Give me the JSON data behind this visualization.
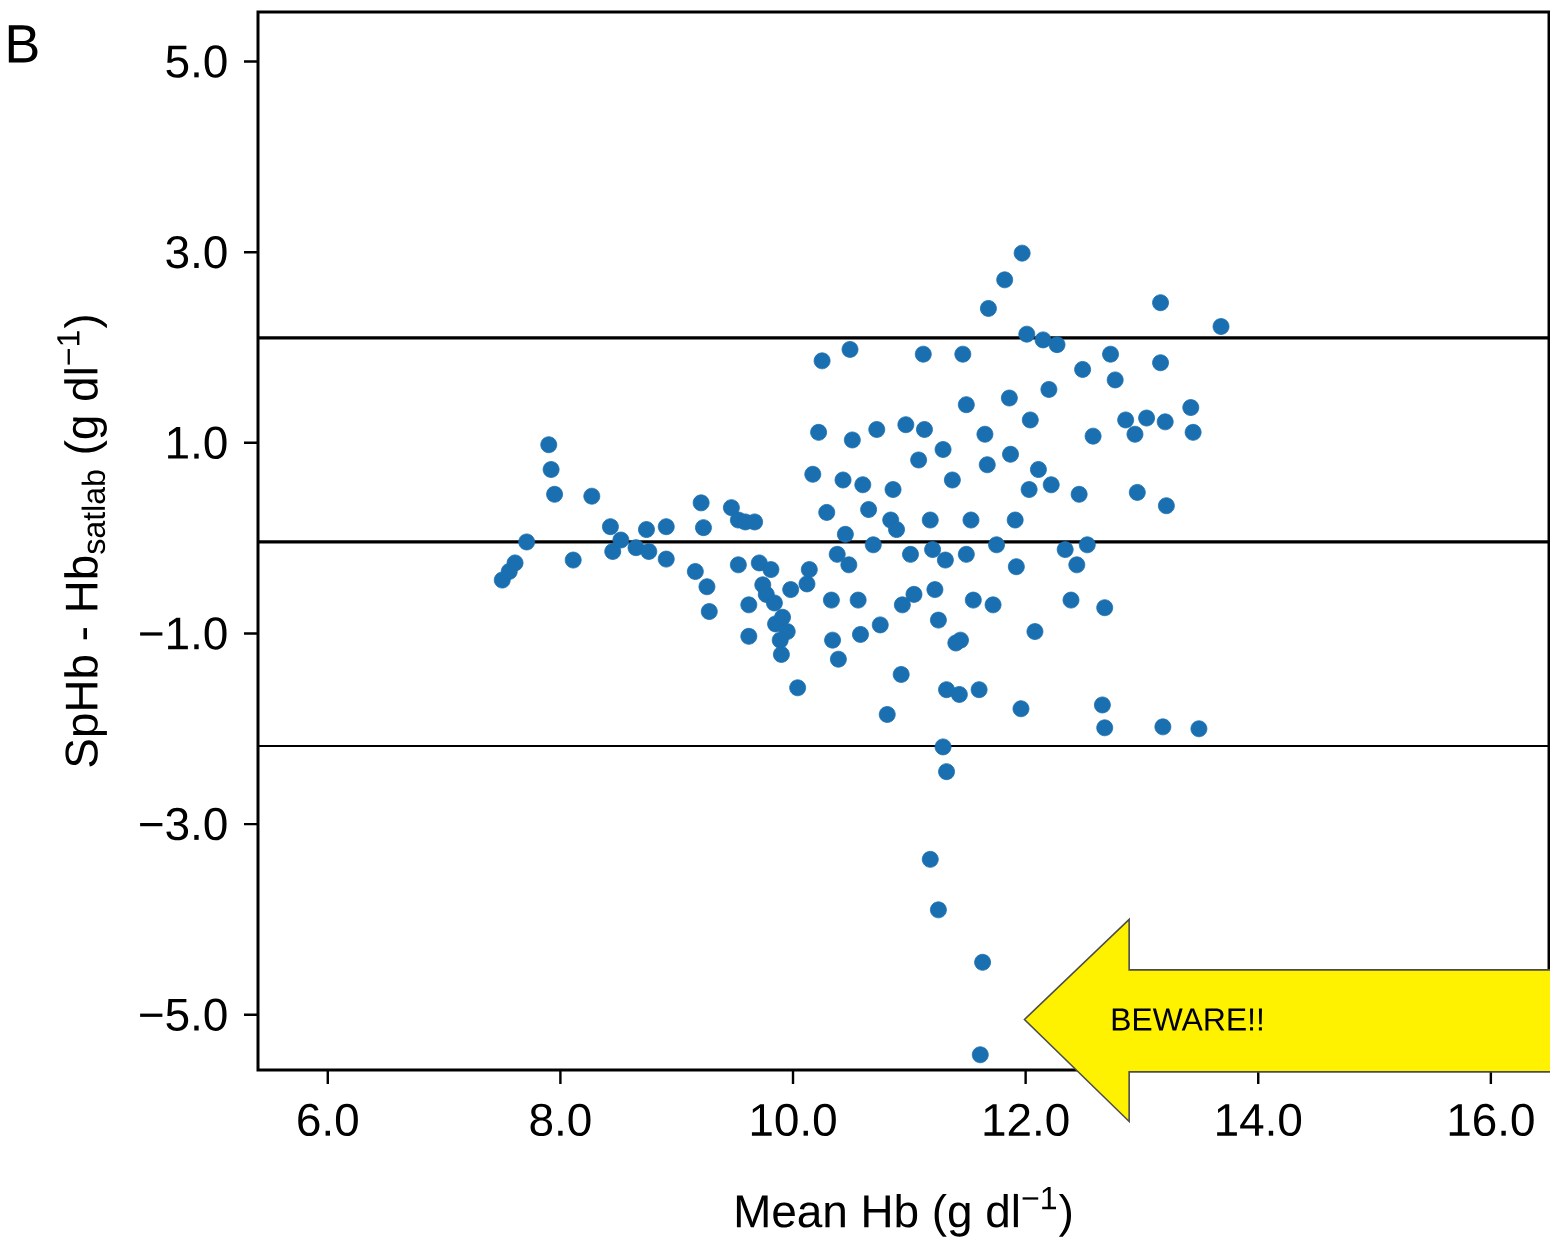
{
  "chart_data": {
    "type": "scatter",
    "xlabel": "Mean Hb (g dl$^{−1}$)",
    "ylabel": "SpHb - Hb$_{satlab}$ (g dl$^{−1}$)",
    "annotations": [
      "B",
      "BEWARE!!"
    ],
    "marker": "circle",
    "xlim": [
      5.4,
      16.5
    ],
    "ylim": [
      -5.58,
      5.52
    ],
    "xticks": [
      {
        "value": 6,
        "label": "6.0"
      },
      {
        "value": 8,
        "label": "8.0"
      },
      {
        "value": 10,
        "label": "10.0"
      },
      {
        "value": 12,
        "label": "12.0"
      },
      {
        "value": 14,
        "label": "14.0"
      },
      {
        "value": 16,
        "label": "16.0"
      }
    ],
    "yticks": [
      {
        "value": -5,
        "label": "−5.0"
      },
      {
        "value": -3,
        "label": "−3.0"
      },
      {
        "value": -1,
        "label": "−1.0"
      },
      {
        "value": 1,
        "label": "1.0"
      },
      {
        "value": 3,
        "label": "3.0"
      },
      {
        "value": 5,
        "label": "5.0"
      }
    ],
    "ref_lines": [
      {
        "axis": "y",
        "value": 2.1,
        "color": "#000000"
      },
      {
        "axis": "y",
        "value": -0.04,
        "color": "#000000"
      },
      {
        "axis": "y",
        "value": -2.18,
        "color": "#000000"
      }
    ],
    "series": [
      {
        "color": "#1a6fb0",
        "x": [
          7.5,
          7.56,
          7.61,
          7.71,
          7.9,
          7.92,
          7.95,
          8.11,
          8.27,
          8.43,
          8.45,
          8.52,
          8.65,
          8.74,
          8.76,
          8.91,
          8.91,
          9.16,
          9.21,
          9.23,
          9.26,
          9.28,
          9.47,
          9.53,
          9.59,
          9.53,
          9.62,
          9.62,
          9.67,
          9.71,
          9.74,
          9.77,
          9.81,
          9.84,
          9.85,
          9.89,
          9.9,
          9.91,
          9.95,
          9.98,
          10.04,
          10.12,
          10.14,
          10.17,
          10.22,
          10.25,
          10.29,
          10.33,
          10.34,
          10.38,
          10.39,
          10.43,
          10.45,
          10.49,
          10.48,
          10.51,
          10.56,
          10.58,
          10.6,
          10.65,
          10.69,
          10.72,
          10.75,
          10.81,
          10.84,
          10.86,
          10.89,
          10.93,
          10.94,
          10.97,
          11.01,
          11.04,
          11.08,
          11.12,
          11.13,
          11.18,
          11.2,
          11.22,
          11.25,
          11.29,
          11.31,
          11.32,
          11.37,
          11.4,
          11.43,
          11.44,
          11.46,
          11.49,
          11.49,
          11.53,
          11.55,
          11.6,
          11.65,
          11.67,
          11.68,
          11.72,
          11.75,
          11.82,
          11.86,
          11.87,
          11.91,
          11.92,
          11.96,
          11.97,
          12.01,
          12.03,
          12.04,
          12.08,
          12.11,
          12.15,
          12.2,
          12.22,
          12.27,
          12.34,
          12.39,
          12.44,
          12.46,
          12.49,
          12.53,
          12.58,
          12.66,
          12.68,
          12.68,
          12.73,
          12.77,
          12.86,
          12.94,
          12.96,
          13.04,
          13.16,
          13.16,
          13.18,
          13.2,
          13.21,
          13.42,
          13.44,
          13.49,
          13.68,
          11.18,
          11.25,
          11.29,
          11.32,
          11.63,
          11.61
        ],
        "values": [
          -0.44,
          -0.35,
          -0.26,
          -0.04,
          0.98,
          0.72,
          0.46,
          -0.23,
          0.44,
          0.12,
          -0.14,
          -0.02,
          -0.1,
          0.09,
          -0.14,
          0.12,
          -0.22,
          -0.35,
          0.37,
          0.11,
          -0.51,
          -0.77,
          0.32,
          0.19,
          0.17,
          -0.28,
          -0.7,
          -1.03,
          0.17,
          -0.26,
          -0.49,
          -0.59,
          -0.33,
          -0.68,
          -0.9,
          -1.07,
          -1.22,
          -0.83,
          -0.98,
          -0.54,
          -1.57,
          -0.48,
          -0.33,
          0.67,
          1.11,
          1.86,
          0.27,
          -0.65,
          -1.07,
          -0.17,
          -1.27,
          0.61,
          0.04,
          1.98,
          -0.28,
          1.03,
          -0.65,
          -1.01,
          0.56,
          0.3,
          -0.07,
          1.14,
          -0.91,
          -1.85,
          0.19,
          0.51,
          0.09,
          -1.43,
          -0.7,
          1.19,
          -0.17,
          -0.59,
          0.82,
          1.93,
          1.14,
          0.19,
          -0.12,
          -0.54,
          -0.86,
          0.93,
          -0.23,
          -1.59,
          0.61,
          -1.1,
          -1.64,
          -1.07,
          1.93,
          1.4,
          -0.17,
          0.19,
          -0.65,
          -1.59,
          1.09,
          0.77,
          2.41,
          -0.7,
          -0.07,
          2.71,
          1.47,
          0.88,
          0.19,
          -0.3,
          -1.79,
          2.99,
          2.14,
          0.51,
          1.24,
          -0.98,
          0.72,
          2.08,
          1.56,
          0.56,
          2.03,
          -0.12,
          -0.65,
          -0.28,
          0.46,
          1.77,
          -0.07,
          1.07,
          -1.75,
          -1.99,
          -0.73,
          1.93,
          1.66,
          1.24,
          1.09,
          0.48,
          1.26,
          2.47,
          1.84,
          -1.98,
          1.22,
          0.34,
          1.37,
          1.11,
          -2.0,
          2.22,
          -3.37,
          -3.9,
          -2.19,
          -2.45,
          -4.45,
          -5.42
        ]
      }
    ]
  }
}
